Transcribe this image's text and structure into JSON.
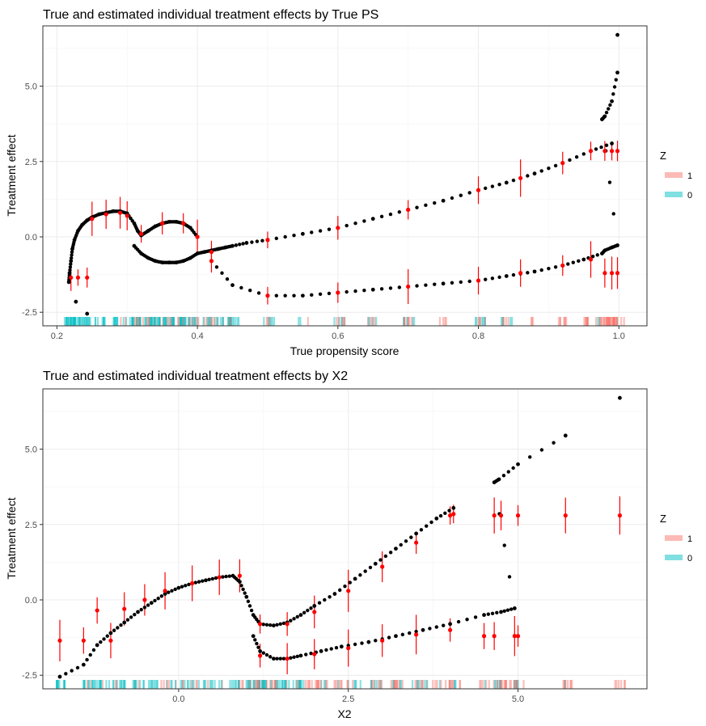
{
  "colors": {
    "treated": "#F8766D",
    "control": "#00BFC4",
    "estimate": "#ff0000",
    "truth": "#000000"
  },
  "legend": {
    "title": "Z",
    "items": [
      "1",
      "0"
    ]
  },
  "chart_data": [
    {
      "type": "scatter",
      "title": "True and estimated individual treatment effects by True PS",
      "xlabel": "True propensity score",
      "ylabel": "Treatment effect",
      "xlim": [
        0.18,
        1.04
      ],
      "ylim": [
        -2.95,
        7.0
      ],
      "xticks": [
        0.2,
        0.4,
        0.6,
        0.8,
        1.0
      ],
      "xtick_labels": [
        "0.2",
        "0.4",
        "0.6",
        "0.8",
        "1.0"
      ],
      "yticks": [
        -2.5,
        0.0,
        2.5,
        5.0
      ],
      "ytick_labels": [
        "-2.5",
        "0.0",
        "2.5",
        "5.0"
      ],
      "grid": true,
      "legend_position": "right",
      "true_effects": {
        "x": [
          0.217,
          0.218,
          0.22,
          0.222,
          0.225,
          0.23,
          0.236,
          0.243,
          0.25,
          0.26,
          0.27,
          0.28,
          0.29,
          0.3,
          0.31,
          0.315,
          0.32,
          0.33,
          0.34,
          0.35,
          0.36,
          0.37,
          0.38,
          0.39,
          0.4,
          0.31,
          0.32,
          0.33,
          0.34,
          0.35,
          0.36,
          0.37,
          0.38,
          0.39,
          0.4,
          0.41,
          0.42,
          0.43,
          0.44,
          0.45,
          0.47,
          0.5,
          0.55,
          0.6,
          0.65,
          0.7,
          0.75,
          0.8,
          0.84,
          0.88,
          0.92,
          0.96,
          0.99,
          0.42,
          0.45,
          0.5,
          0.55,
          0.6,
          0.65,
          0.7,
          0.75,
          0.8,
          0.84,
          0.88,
          0.92,
          0.95,
          0.976,
          0.98,
          0.99,
          0.998,
          0.976,
          0.98,
          0.99,
          0.998
        ],
        "y": [
          -1.5,
          -1.2,
          -0.8,
          -0.4,
          -0.1,
          0.2,
          0.4,
          0.55,
          0.65,
          0.75,
          0.8,
          0.85,
          0.85,
          0.78,
          0.45,
          0.2,
          0.05,
          0.2,
          0.35,
          0.45,
          0.5,
          0.5,
          0.45,
          0.3,
          0.0,
          -0.3,
          -0.55,
          -0.7,
          -0.8,
          -0.85,
          -0.85,
          -0.85,
          -0.8,
          -0.7,
          -0.55,
          -0.5,
          -0.45,
          -0.4,
          -0.35,
          -0.3,
          -0.2,
          -0.1,
          0.1,
          0.3,
          0.6,
          0.9,
          1.2,
          1.55,
          1.8,
          2.1,
          2.45,
          2.85,
          3.1,
          -0.8,
          -1.6,
          -1.95,
          -1.95,
          -1.85,
          -1.75,
          -1.65,
          -1.55,
          -1.45,
          -1.3,
          -1.15,
          -0.95,
          -0.75,
          -0.55,
          -0.45,
          -0.35,
          -0.28,
          3.9,
          4.0,
          4.5,
          5.45
        ],
        "outliers": {
          "x": [
            0.227,
            0.243,
            0.998
          ],
          "y": [
            -2.15,
            -2.55,
            6.7
          ]
        }
      },
      "estimated_effects": {
        "x": [
          0.22,
          0.23,
          0.243,
          0.25,
          0.27,
          0.29,
          0.3,
          0.32,
          0.35,
          0.38,
          0.4,
          0.42,
          0.5,
          0.6,
          0.7,
          0.8,
          0.86,
          0.92,
          0.96,
          0.98,
          0.99,
          0.998,
          0.42,
          0.5,
          0.6,
          0.7,
          0.8,
          0.86,
          0.92,
          0.96,
          0.98,
          0.99,
          0.998
        ],
        "y": [
          -1.35,
          -1.35,
          -1.35,
          0.6,
          0.75,
          0.8,
          0.7,
          0.1,
          0.45,
          0.45,
          0.0,
          -0.5,
          -0.1,
          0.3,
          0.9,
          1.55,
          1.95,
          2.45,
          2.85,
          2.85,
          2.85,
          2.85,
          -0.8,
          -1.95,
          -1.85,
          -1.65,
          -1.45,
          -1.2,
          -0.95,
          -0.75,
          -1.2,
          -1.2,
          -1.2
        ],
        "ci_halfwidth": 0.45
      },
      "rug": {
        "side": "bottom",
        "groups": [
          "1",
          "0"
        ]
      }
    },
    {
      "type": "scatter",
      "title": "True and estimated individual treatment effects by X2",
      "xlabel": "X2",
      "ylabel": "Treatment effect",
      "xlim": [
        -2.0,
        6.9
      ],
      "ylim": [
        -2.95,
        7.0
      ],
      "xticks": [
        0.0,
        2.5,
        5.0
      ],
      "xtick_labels": [
        "0.0",
        "2.5",
        "5.0"
      ],
      "yticks": [
        -2.5,
        0.0,
        2.5,
        5.0
      ],
      "ytick_labels": [
        "-2.5",
        "0.0",
        "2.5",
        "5.0"
      ],
      "grid": true,
      "legend_position": "right",
      "true_effects": {
        "x": [
          -1.75,
          -1.4,
          -1.2,
          -1.0,
          -0.8,
          -0.6,
          -0.4,
          -0.2,
          0.0,
          0.2,
          0.4,
          0.6,
          0.8,
          0.9,
          1.0,
          1.1,
          1.2,
          1.4,
          1.6,
          1.8,
          2.0,
          2.3,
          2.6,
          2.9,
          3.2,
          3.5,
          3.8,
          4.05,
          1.1,
          1.2,
          1.4,
          1.6,
          1.8,
          2.1,
          2.4,
          2.8,
          3.2,
          3.6,
          4.0,
          4.5,
          4.75,
          4.95,
          4.65,
          4.72,
          5.0,
          5.7,
          6.5
        ],
        "y": [
          -2.55,
          -2.15,
          -1.5,
          -1.1,
          -0.75,
          -0.4,
          -0.1,
          0.2,
          0.4,
          0.55,
          0.65,
          0.75,
          0.8,
          0.6,
          0.1,
          -0.5,
          -0.8,
          -0.85,
          -0.75,
          -0.5,
          -0.2,
          0.2,
          0.7,
          1.2,
          1.7,
          2.2,
          2.7,
          3.05,
          -1.2,
          -1.7,
          -1.95,
          -1.95,
          -1.85,
          -1.7,
          -1.55,
          -1.4,
          -1.2,
          -1.0,
          -0.8,
          -0.5,
          -0.4,
          -0.28,
          3.9,
          4.0,
          4.5,
          5.45,
          6.7
        ]
      },
      "estimated_effects": {
        "x": [
          -1.75,
          -1.4,
          -1.2,
          -1.0,
          -0.8,
          -0.5,
          -0.2,
          0.2,
          0.6,
          0.9,
          1.2,
          1.6,
          2.0,
          2.5,
          3.0,
          3.5,
          4.0,
          4.05,
          4.65,
          4.75,
          5.0,
          5.7,
          6.5,
          1.2,
          1.6,
          2.0,
          2.5,
          3.0,
          3.5,
          4.0,
          4.5,
          4.65,
          4.95,
          5.0
        ],
        "y": [
          -1.35,
          -1.35,
          -0.35,
          -1.35,
          -0.3,
          0.0,
          0.3,
          0.55,
          0.75,
          0.8,
          -0.8,
          -0.8,
          -0.4,
          0.3,
          1.1,
          1.9,
          2.8,
          2.85,
          2.8,
          2.8,
          2.8,
          2.8,
          2.8,
          -1.85,
          -1.95,
          -1.8,
          -1.6,
          -1.35,
          -1.15,
          -1.0,
          -1.2,
          -1.2,
          -1.2,
          -1.2
        ],
        "ci_halfwidth": 0.5
      },
      "rug": {
        "side": "bottom",
        "groups": [
          "1",
          "0"
        ]
      }
    }
  ]
}
